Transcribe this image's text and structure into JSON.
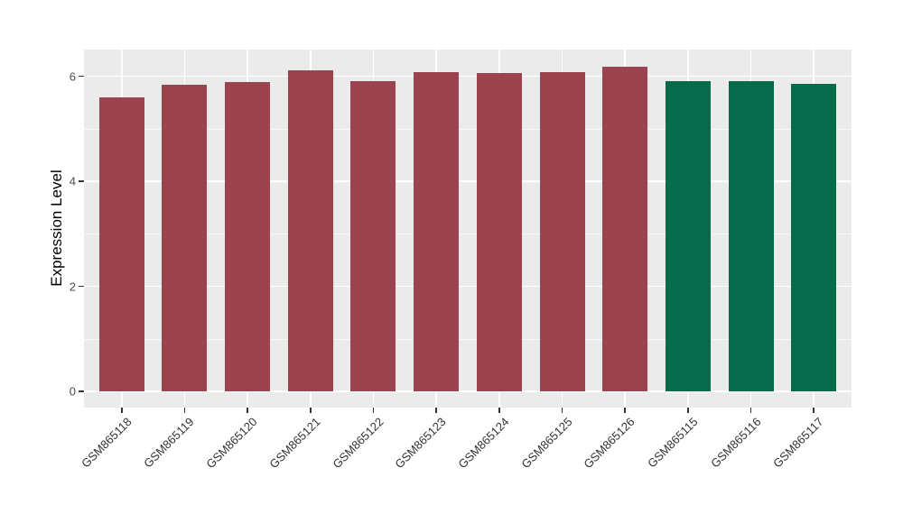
{
  "figure": {
    "background": "#FFFFFF",
    "panel_background": "#EBEBEB",
    "grid_color": "#FFFFFF",
    "tick_color": "#333333",
    "ytick_text_color": "#4D4D4D",
    "xtick_text_color": "#333333",
    "axis_title_color": "#000000"
  },
  "chart_data": {
    "type": "bar",
    "title": "",
    "xlabel": "",
    "ylabel": "Expression Level",
    "categories": [
      "GSM865118",
      "GSM865119",
      "GSM865120",
      "GSM865121",
      "GSM865122",
      "GSM865123",
      "GSM865124",
      "GSM865125",
      "GSM865126",
      "GSM865115",
      "GSM865116",
      "GSM865117"
    ],
    "values": [
      5.6,
      5.83,
      5.88,
      6.12,
      5.91,
      6.07,
      6.06,
      6.07,
      6.18,
      5.91,
      5.91,
      5.85
    ],
    "bar_colors": [
      "#9B4450",
      "#9B4450",
      "#9B4450",
      "#9B4450",
      "#9B4450",
      "#9B4450",
      "#9B4450",
      "#9B4450",
      "#9B4450",
      "#066A4B",
      "#066A4B",
      "#066A4B"
    ],
    "color_groups": [
      {
        "color": "#9B4450",
        "categories": [
          "GSM865118",
          "GSM865119",
          "GSM865120",
          "GSM865121",
          "GSM865122",
          "GSM865123",
          "GSM865124",
          "GSM865125",
          "GSM865126"
        ]
      },
      {
        "color": "#066A4B",
        "categories": [
          "GSM865115",
          "GSM865116",
          "GSM865117"
        ]
      }
    ],
    "yticks": [
      0,
      2,
      4,
      6
    ],
    "minor_yticks": [
      1,
      3,
      5
    ],
    "ylim": [
      -0.31,
      6.51
    ],
    "grid": true,
    "legend": "none",
    "bar_width_fraction": 0.72,
    "x_label_rotation_deg": 45
  }
}
